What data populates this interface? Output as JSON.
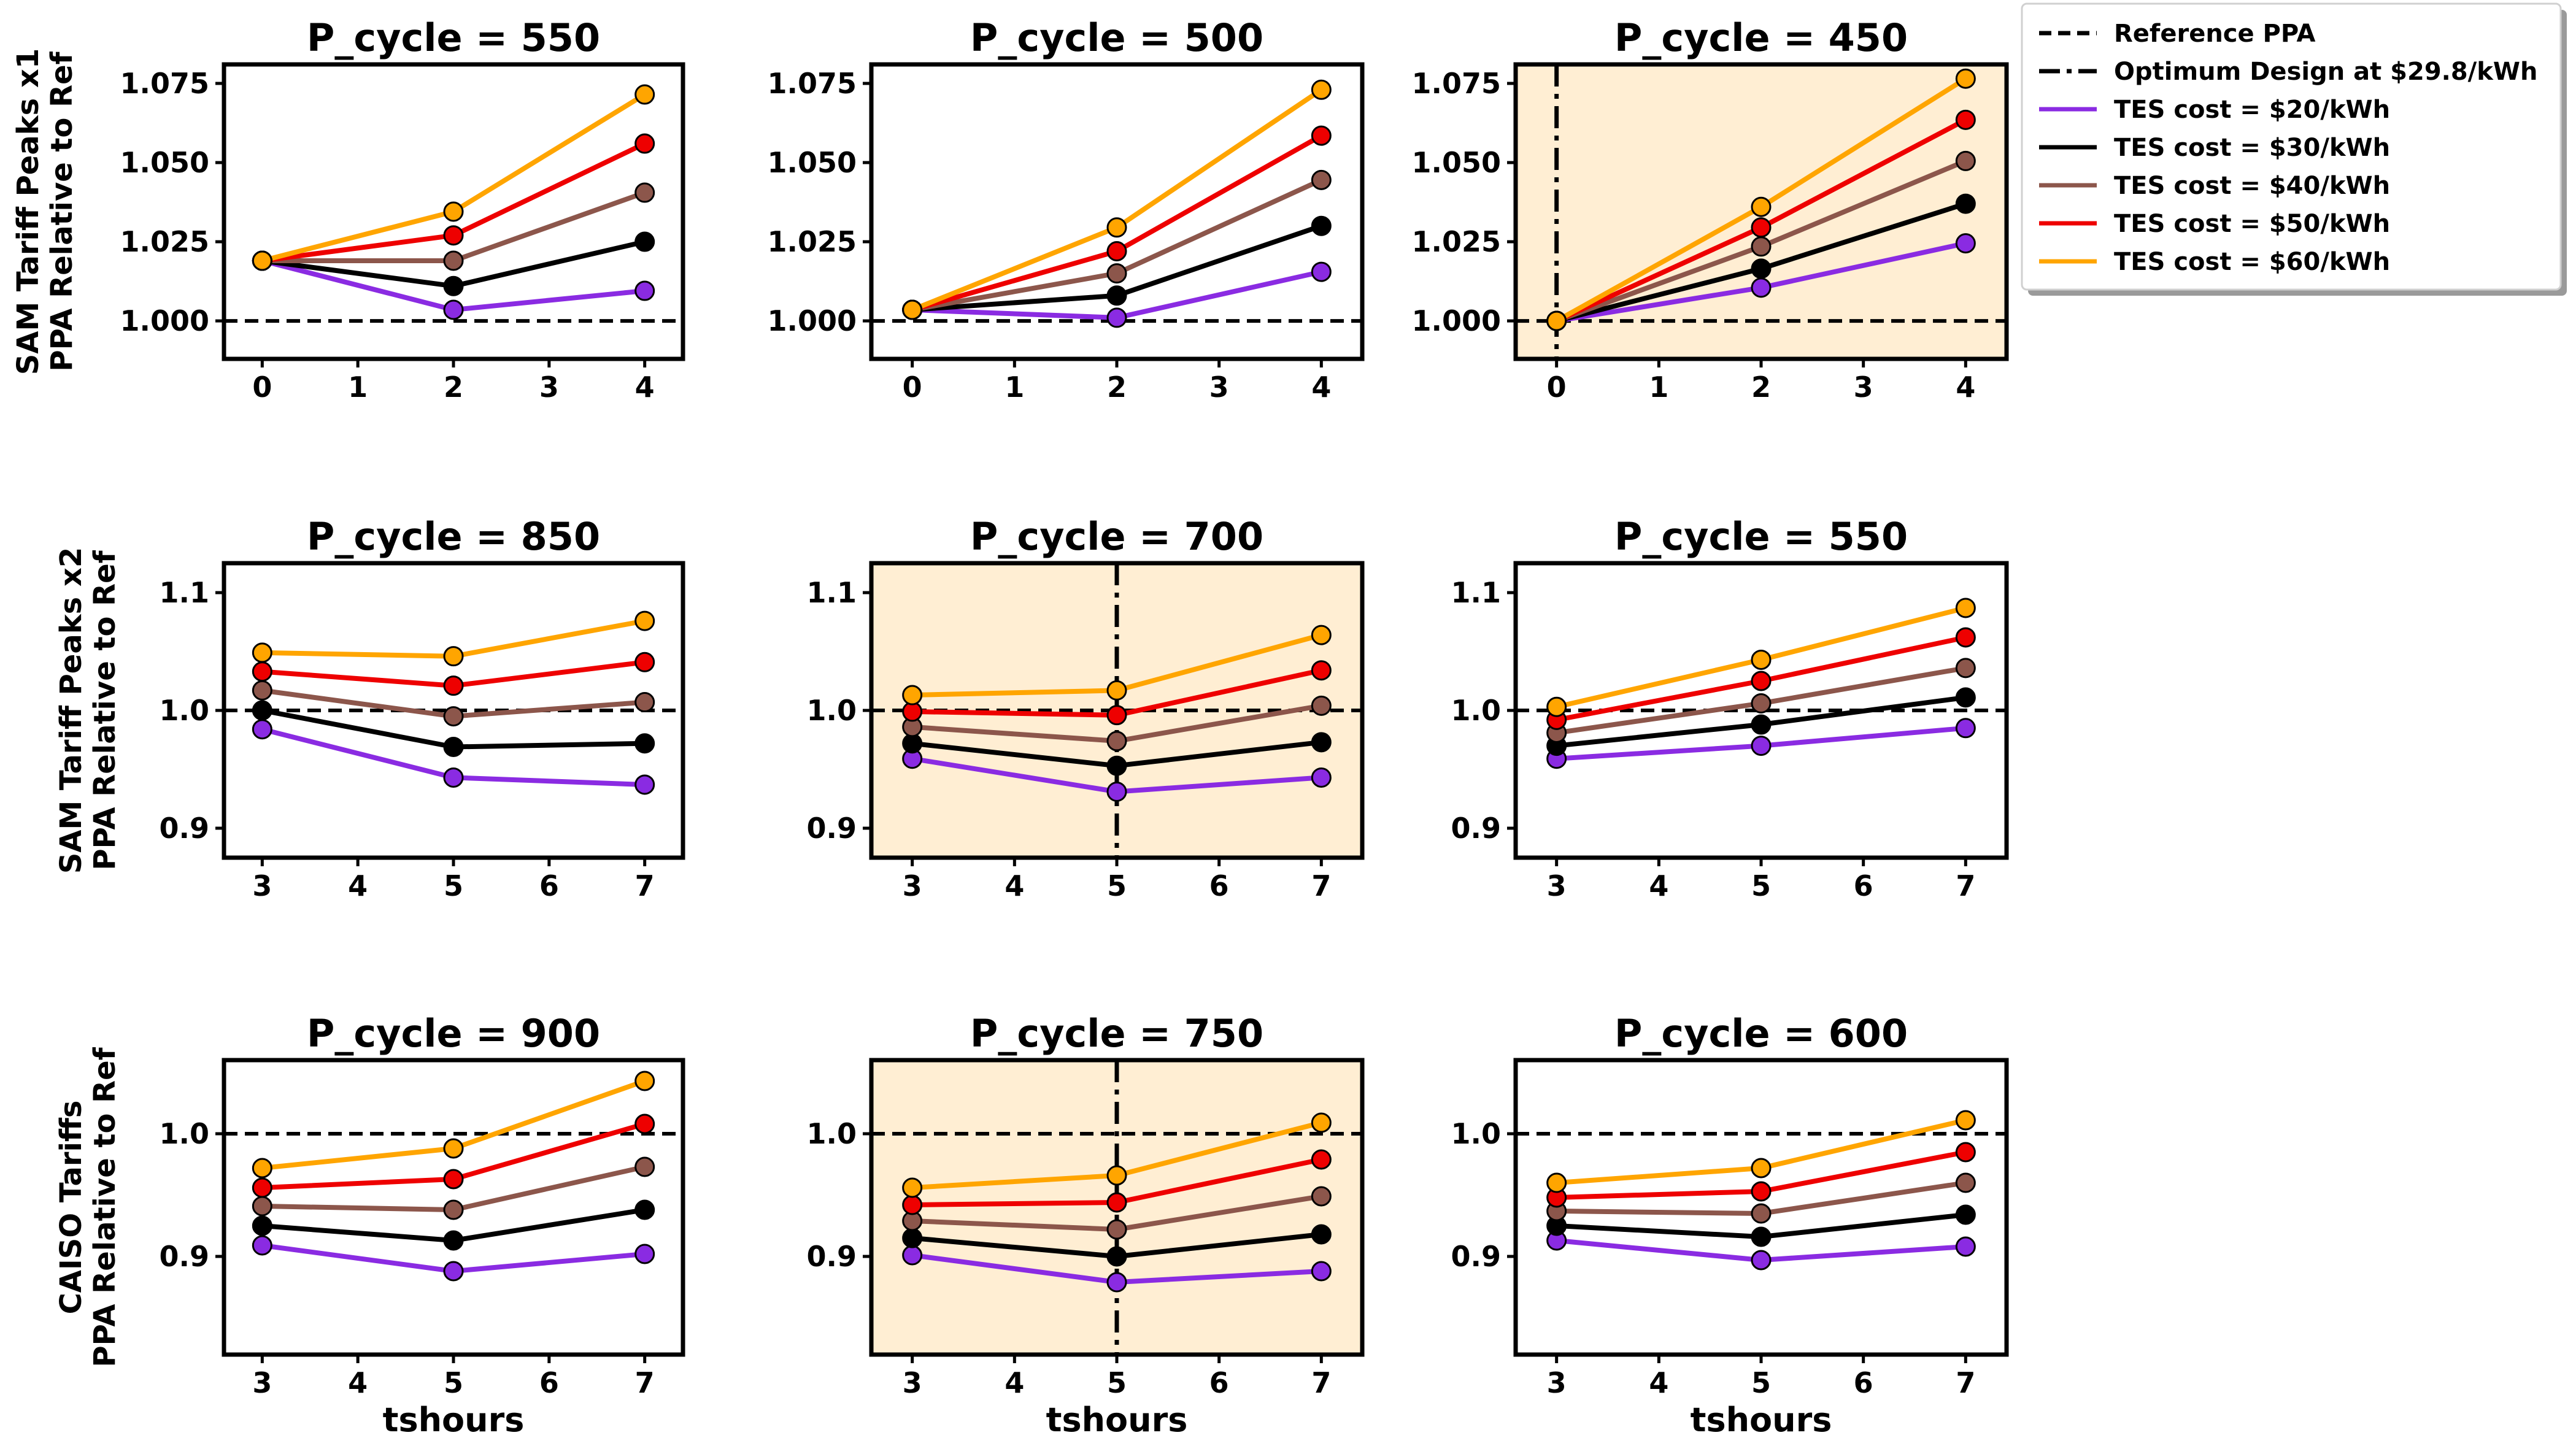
{
  "legend": {
    "items": [
      {
        "label": "Reference PPA",
        "style": "dashed",
        "color": "#000000"
      },
      {
        "label": "Optimum Design at $29.8/kWh",
        "style": "dashdot",
        "color": "#000000"
      },
      {
        "label": "TES cost = $20/kWh",
        "style": "solid",
        "color": "#8a2be2"
      },
      {
        "label": "TES cost = $30/kWh",
        "style": "solid",
        "color": "#000000"
      },
      {
        "label": "TES cost = $40/kWh",
        "style": "solid",
        "color": "#8c564b"
      },
      {
        "label": "TES cost = $50/kWh",
        "style": "solid",
        "color": "#ee0000"
      },
      {
        "label": "TES cost = $60/kWh",
        "style": "solid",
        "color": "#ffa500"
      }
    ]
  },
  "colors": {
    "tes20": "#8a2be2",
    "tes30": "#000000",
    "tes40": "#8c564b",
    "tes50": "#ee0000",
    "tes60": "#ffa500",
    "optimum_fill": "#ffeed3"
  },
  "row_labels": [
    [
      "SAM Tariff Peaks x1",
      "PPA Relative to Ref"
    ],
    [
      "SAM Tariff Peaks x2",
      "PPA Relative to Ref"
    ],
    [
      "CAISO Tariffs",
      "PPA Relative to Ref"
    ]
  ],
  "chart_data": [
    {
      "type": "line",
      "title": "P_cycle = 550",
      "row": 0,
      "col": 0,
      "xlabel": "",
      "optimum": false,
      "x": [
        0,
        2,
        4
      ],
      "xlim": [
        -0.4,
        4.4
      ],
      "xticks": [
        0,
        1,
        2,
        3,
        4
      ],
      "xtick_labels": [
        "0",
        "1",
        "2",
        "3",
        "4"
      ],
      "ylim": [
        0.988,
        1.081
      ],
      "yticks": [
        1.0,
        1.025,
        1.05,
        1.075
      ],
      "ytick_labels": [
        "1.000",
        "1.025",
        "1.050",
        "1.075"
      ],
      "reference": 1.0,
      "series": [
        {
          "name": "TES cost = $20/kWh",
          "values": [
            1.019,
            1.0035,
            1.0095
          ]
        },
        {
          "name": "TES cost = $30/kWh",
          "values": [
            1.019,
            1.011,
            1.025
          ]
        },
        {
          "name": "TES cost = $40/kWh",
          "values": [
            1.019,
            1.019,
            1.0405
          ]
        },
        {
          "name": "TES cost = $50/kWh",
          "values": [
            1.019,
            1.027,
            1.056
          ]
        },
        {
          "name": "TES cost = $60/kWh",
          "values": [
            1.019,
            1.0345,
            1.0715
          ]
        }
      ]
    },
    {
      "type": "line",
      "title": "P_cycle = 500",
      "row": 0,
      "col": 1,
      "xlabel": "",
      "optimum": false,
      "x": [
        0,
        2,
        4
      ],
      "xlim": [
        -0.4,
        4.4
      ],
      "xticks": [
        0,
        1,
        2,
        3,
        4
      ],
      "xtick_labels": [
        "0",
        "1",
        "2",
        "3",
        "4"
      ],
      "ylim": [
        0.988,
        1.081
      ],
      "yticks": [
        1.0,
        1.025,
        1.05,
        1.075
      ],
      "ytick_labels": [
        "1.000",
        "1.025",
        "1.050",
        "1.075"
      ],
      "reference": 1.0,
      "series": [
        {
          "name": "TES cost = $20/kWh",
          "values": [
            1.0035,
            1.001,
            1.0155
          ]
        },
        {
          "name": "TES cost = $30/kWh",
          "values": [
            1.0035,
            1.008,
            1.03
          ]
        },
        {
          "name": "TES cost = $40/kWh",
          "values": [
            1.0035,
            1.015,
            1.0445
          ]
        },
        {
          "name": "TES cost = $50/kWh",
          "values": [
            1.0035,
            1.022,
            1.0585
          ]
        },
        {
          "name": "TES cost = $60/kWh",
          "values": [
            1.0035,
            1.0295,
            1.073
          ]
        }
      ]
    },
    {
      "type": "line",
      "title": "P_cycle = 450",
      "row": 0,
      "col": 2,
      "xlabel": "",
      "optimum": true,
      "optimum_x": 0,
      "x": [
        0,
        2,
        4
      ],
      "xlim": [
        -0.4,
        4.4
      ],
      "xticks": [
        0,
        1,
        2,
        3,
        4
      ],
      "xtick_labels": [
        "0",
        "1",
        "2",
        "3",
        "4"
      ],
      "ylim": [
        0.988,
        1.081
      ],
      "yticks": [
        1.0,
        1.025,
        1.05,
        1.075
      ],
      "ytick_labels": [
        "1.000",
        "1.025",
        "1.050",
        "1.075"
      ],
      "reference": 1.0,
      "series": [
        {
          "name": "TES cost = $20/kWh",
          "values": [
            1.0,
            1.0105,
            1.0245
          ]
        },
        {
          "name": "TES cost = $30/kWh",
          "values": [
            1.0,
            1.0165,
            1.037
          ]
        },
        {
          "name": "TES cost = $40/kWh",
          "values": [
            1.0,
            1.0235,
            1.0505
          ]
        },
        {
          "name": "TES cost = $50/kWh",
          "values": [
            1.0,
            1.0295,
            1.0635
          ]
        },
        {
          "name": "TES cost = $60/kWh",
          "values": [
            1.0,
            1.036,
            1.0765
          ]
        }
      ]
    },
    {
      "type": "line",
      "title": "P_cycle = 850",
      "row": 1,
      "col": 0,
      "xlabel": "",
      "optimum": false,
      "x": [
        3,
        5,
        7
      ],
      "xlim": [
        2.6,
        7.4
      ],
      "xticks": [
        3,
        4,
        5,
        6,
        7
      ],
      "xtick_labels": [
        "3",
        "4",
        "5",
        "6",
        "7"
      ],
      "ylim": [
        0.875,
        1.125
      ],
      "yticks": [
        0.9,
        1.0,
        1.1
      ],
      "ytick_labels": [
        "0.9",
        "1.0",
        "1.1"
      ],
      "reference": 1.0,
      "series": [
        {
          "name": "TES cost = $20/kWh",
          "values": [
            0.984,
            0.943,
            0.937
          ]
        },
        {
          "name": "TES cost = $30/kWh",
          "values": [
            1.0,
            0.969,
            0.972
          ]
        },
        {
          "name": "TES cost = $40/kWh",
          "values": [
            1.017,
            0.995,
            1.007
          ]
        },
        {
          "name": "TES cost = $50/kWh",
          "values": [
            1.033,
            1.021,
            1.041
          ]
        },
        {
          "name": "TES cost = $60/kWh",
          "values": [
            1.049,
            1.046,
            1.076
          ]
        }
      ]
    },
    {
      "type": "line",
      "title": "P_cycle = 700",
      "row": 1,
      "col": 1,
      "xlabel": "",
      "optimum": true,
      "optimum_x": 5,
      "x": [
        3,
        5,
        7
      ],
      "xlim": [
        2.6,
        7.4
      ],
      "xticks": [
        3,
        4,
        5,
        6,
        7
      ],
      "xtick_labels": [
        "3",
        "4",
        "5",
        "6",
        "7"
      ],
      "ylim": [
        0.875,
        1.125
      ],
      "yticks": [
        0.9,
        1.0,
        1.1
      ],
      "ytick_labels": [
        "0.9",
        "1.0",
        "1.1"
      ],
      "reference": 1.0,
      "series": [
        {
          "name": "TES cost = $20/kWh",
          "values": [
            0.959,
            0.931,
            0.943
          ]
        },
        {
          "name": "TES cost = $30/kWh",
          "values": [
            0.972,
            0.953,
            0.973
          ]
        },
        {
          "name": "TES cost = $40/kWh",
          "values": [
            0.986,
            0.974,
            1.004
          ]
        },
        {
          "name": "TES cost = $50/kWh",
          "values": [
            0.999,
            0.996,
            1.034
          ]
        },
        {
          "name": "TES cost = $60/kWh",
          "values": [
            1.013,
            1.017,
            1.064
          ]
        }
      ]
    },
    {
      "type": "line",
      "title": "P_cycle = 550",
      "row": 1,
      "col": 2,
      "xlabel": "",
      "optimum": false,
      "x": [
        3,
        5,
        7
      ],
      "xlim": [
        2.6,
        7.4
      ],
      "xticks": [
        3,
        4,
        5,
        6,
        7
      ],
      "xtick_labels": [
        "3",
        "4",
        "5",
        "6",
        "7"
      ],
      "ylim": [
        0.875,
        1.125
      ],
      "yticks": [
        0.9,
        1.0,
        1.1
      ],
      "ytick_labels": [
        "0.9",
        "1.0",
        "1.1"
      ],
      "reference": 1.0,
      "series": [
        {
          "name": "TES cost = $20/kWh",
          "values": [
            0.959,
            0.97,
            0.985
          ]
        },
        {
          "name": "TES cost = $30/kWh",
          "values": [
            0.97,
            0.988,
            1.011
          ]
        },
        {
          "name": "TES cost = $40/kWh",
          "values": [
            0.981,
            1.006,
            1.036
          ]
        },
        {
          "name": "TES cost = $50/kWh",
          "values": [
            0.992,
            1.025,
            1.062
          ]
        },
        {
          "name": "TES cost = $60/kWh",
          "values": [
            1.003,
            1.043,
            1.087
          ]
        }
      ]
    },
    {
      "type": "line",
      "title": "P_cycle = 900",
      "row": 2,
      "col": 0,
      "xlabel": "tshours",
      "optimum": false,
      "x": [
        3,
        5,
        7
      ],
      "xlim": [
        2.6,
        7.4
      ],
      "xticks": [
        3,
        4,
        5,
        6,
        7
      ],
      "xtick_labels": [
        "3",
        "4",
        "5",
        "6",
        "7"
      ],
      "ylim": [
        0.82,
        1.06
      ],
      "yticks": [
        0.9,
        1.0
      ],
      "ytick_labels": [
        "0.9",
        "1.0"
      ],
      "reference": 1.0,
      "series": [
        {
          "name": "TES cost = $20/kWh",
          "values": [
            0.909,
            0.888,
            0.902
          ]
        },
        {
          "name": "TES cost = $30/kWh",
          "values": [
            0.925,
            0.913,
            0.938
          ]
        },
        {
          "name": "TES cost = $40/kWh",
          "values": [
            0.941,
            0.938,
            0.973
          ]
        },
        {
          "name": "TES cost = $50/kWh",
          "values": [
            0.956,
            0.963,
            1.008
          ]
        },
        {
          "name": "TES cost = $60/kWh",
          "values": [
            0.972,
            0.988,
            1.043
          ]
        }
      ]
    },
    {
      "type": "line",
      "title": "P_cycle = 750",
      "row": 2,
      "col": 1,
      "xlabel": "tshours",
      "optimum": true,
      "optimum_x": 5,
      "x": [
        3,
        5,
        7
      ],
      "xlim": [
        2.6,
        7.4
      ],
      "xticks": [
        3,
        4,
        5,
        6,
        7
      ],
      "xtick_labels": [
        "3",
        "4",
        "5",
        "6",
        "7"
      ],
      "ylim": [
        0.82,
        1.06
      ],
      "yticks": [
        0.9,
        1.0
      ],
      "ytick_labels": [
        "0.9",
        "1.0"
      ],
      "reference": 1.0,
      "series": [
        {
          "name": "TES cost = $20/kWh",
          "values": [
            0.901,
            0.879,
            0.888
          ]
        },
        {
          "name": "TES cost = $30/kWh",
          "values": [
            0.915,
            0.9,
            0.918
          ]
        },
        {
          "name": "TES cost = $40/kWh",
          "values": [
            0.929,
            0.922,
            0.949
          ]
        },
        {
          "name": "TES cost = $50/kWh",
          "values": [
            0.942,
            0.944,
            0.979
          ]
        },
        {
          "name": "TES cost = $60/kWh",
          "values": [
            0.956,
            0.966,
            1.009
          ]
        }
      ]
    },
    {
      "type": "line",
      "title": "P_cycle = 600",
      "row": 2,
      "col": 2,
      "xlabel": "tshours",
      "optimum": false,
      "x": [
        3,
        5,
        7
      ],
      "xlim": [
        2.6,
        7.4
      ],
      "xticks": [
        3,
        4,
        5,
        6,
        7
      ],
      "xtick_labels": [
        "3",
        "4",
        "5",
        "6",
        "7"
      ],
      "ylim": [
        0.82,
        1.06
      ],
      "yticks": [
        0.9,
        1.0
      ],
      "ytick_labels": [
        "0.9",
        "1.0"
      ],
      "reference": 1.0,
      "series": [
        {
          "name": "TES cost = $20/kWh",
          "values": [
            0.913,
            0.897,
            0.908
          ]
        },
        {
          "name": "TES cost = $30/kWh",
          "values": [
            0.925,
            0.916,
            0.934
          ]
        },
        {
          "name": "TES cost = $40/kWh",
          "values": [
            0.937,
            0.935,
            0.96
          ]
        },
        {
          "name": "TES cost = $50/kWh",
          "values": [
            0.948,
            0.953,
            0.985
          ]
        },
        {
          "name": "TES cost = $60/kWh",
          "values": [
            0.96,
            0.972,
            1.011
          ]
        }
      ]
    }
  ]
}
